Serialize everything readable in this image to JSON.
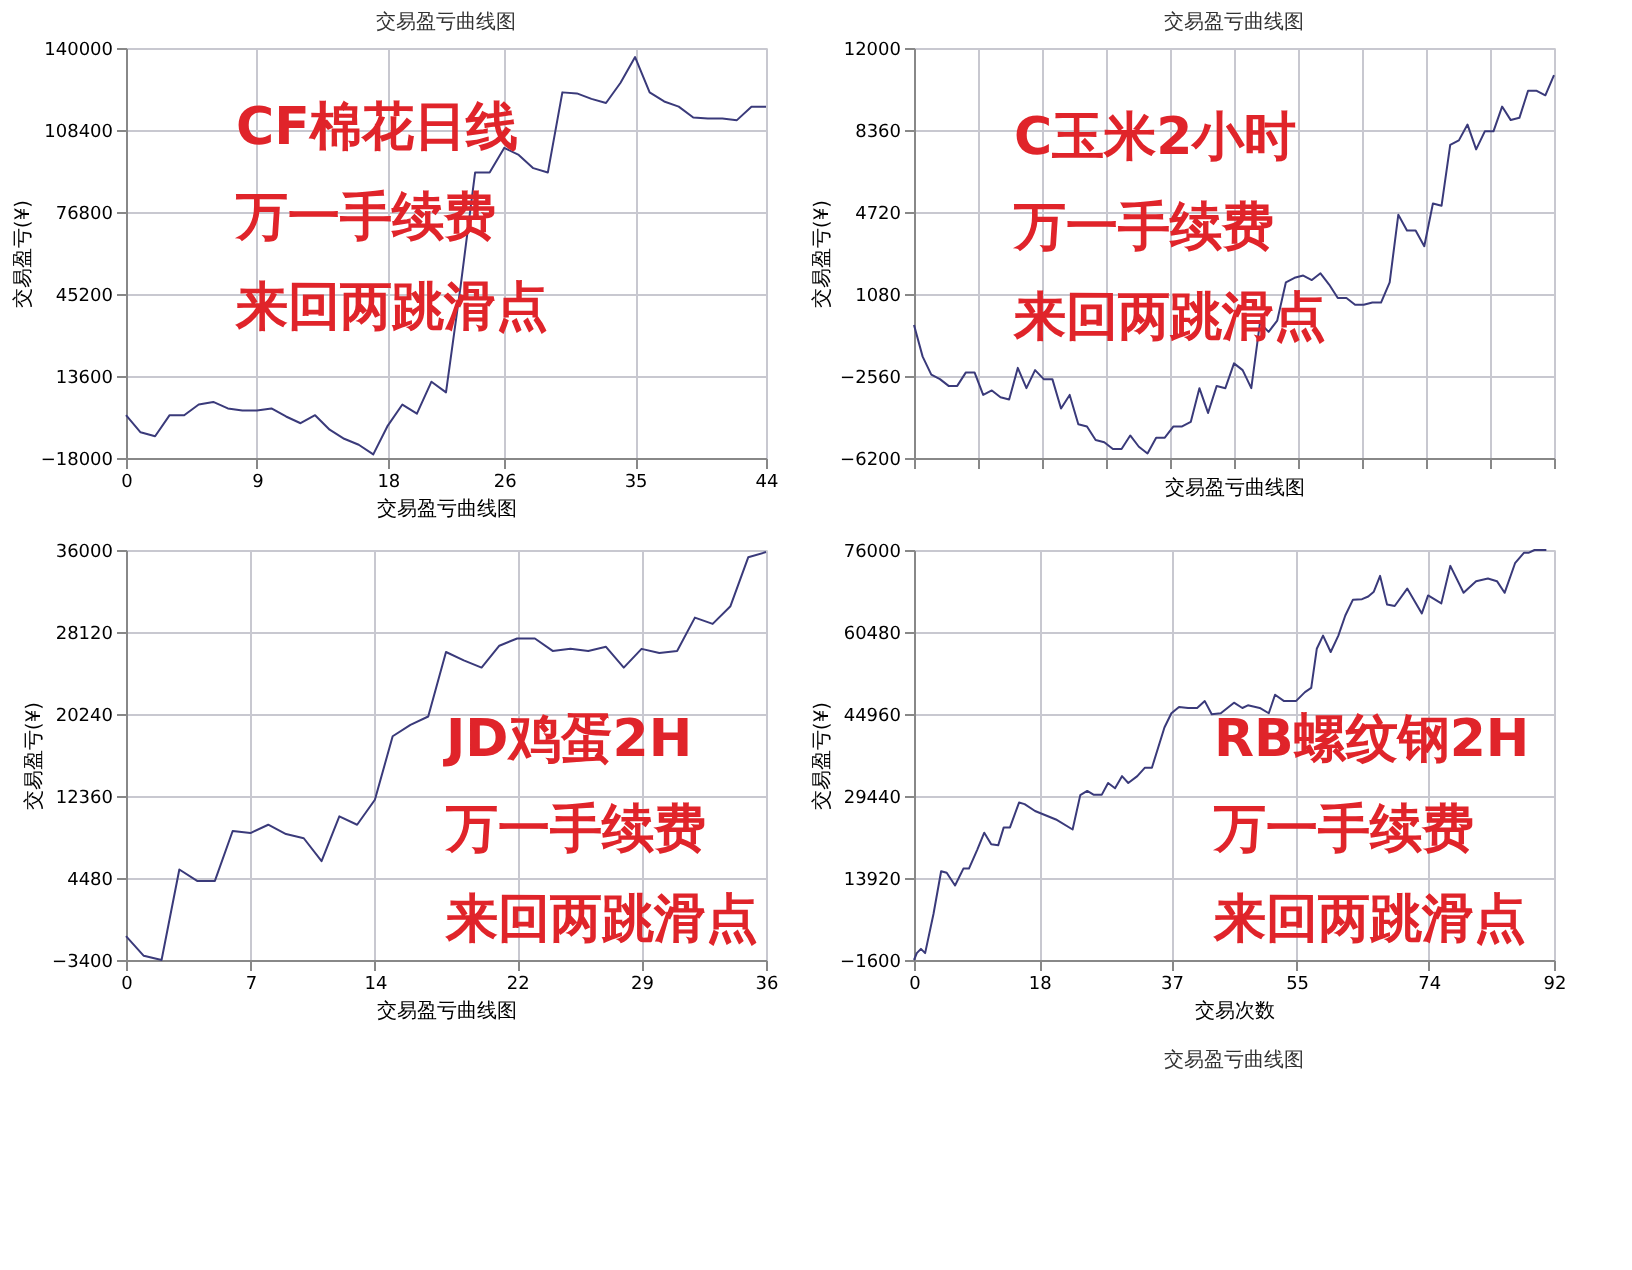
{
  "chart_data": [
    {
      "type": "line",
      "title": "交易盈亏曲线图",
      "xlabel": "交易盈亏曲线图",
      "ylabel": "交易盈亏(¥)",
      "x": [
        0,
        1,
        2,
        3,
        4,
        5,
        6,
        7,
        8,
        9,
        10,
        11,
        12,
        13,
        14,
        15,
        16,
        17,
        18,
        19,
        20,
        21,
        22,
        23,
        24,
        25,
        26,
        27,
        28,
        29,
        30,
        31,
        32,
        33,
        34,
        35,
        36,
        37,
        38,
        39,
        40,
        41,
        42,
        43,
        44
      ],
      "series": [
        {
          "color": "#3a3a7a",
          "values": [
            -1500,
            -8100,
            -9600,
            -1500,
            -1500,
            2600,
            3600,
            1100,
            300,
            300,
            1100,
            -2000,
            -4600,
            -1500,
            -7100,
            -10600,
            -12900,
            -16600,
            -5500,
            2600,
            -900,
            11400,
            7300,
            48000,
            92000,
            92000,
            101500,
            98800,
            93700,
            92000,
            122900,
            122500,
            120400,
            118800,
            126600,
            136500,
            122900,
            119400,
            117400,
            113200,
            112800,
            112800,
            112200,
            117400,
            117400
          ]
        }
      ],
      "xlim": [
        0,
        44
      ],
      "xticks": [
        0,
        9,
        18,
        26,
        35,
        44
      ],
      "ylim": [
        -18000,
        140000
      ],
      "yticks": [
        -18000,
        13600,
        45200,
        76800,
        108400,
        140000
      ],
      "grid": true,
      "line_style": "solid",
      "annotations": [
        "CF棉花日线",
        "万一手续费",
        "来回两跳滑点"
      ]
    },
    {
      "type": "line",
      "title": "交易盈亏曲线图",
      "xlabel": "交易盈亏曲线图",
      "ylabel": "交易盈亏(¥)",
      "categories": [
        null,
        null,
        null,
        null,
        null,
        null,
        null,
        null,
        null,
        null,
        null,
        null,
        null,
        null,
        null,
        null,
        null,
        null,
        null,
        null,
        null,
        null,
        null,
        null,
        null,
        null,
        null,
        null,
        null,
        null,
        null,
        null,
        null,
        null,
        null,
        null,
        null,
        null,
        null,
        null,
        null,
        null,
        null,
        null,
        null,
        null,
        null,
        null,
        null,
        null,
        null,
        null,
        null,
        null,
        null,
        null,
        null,
        null,
        null,
        null,
        null,
        null,
        null,
        null,
        null,
        null,
        null,
        null,
        null,
        null,
        null,
        null,
        null,
        null,
        null
      ],
      "series": [
        {
          "color": "#3a3a7a",
          "values": [
            -300,
            -1700,
            -2500,
            -2700,
            -3000,
            -3000,
            -2400,
            -2400,
            -3400,
            -3200,
            -3500,
            -3600,
            -2200,
            -3100,
            -2300,
            -2700,
            -2700,
            -4000,
            -3400,
            -4700,
            -4800,
            -5400,
            -5500,
            -5800,
            -5800,
            -5200,
            -5700,
            -6000,
            -5300,
            -5300,
            -4800,
            -4800,
            -4600,
            -3100,
            -4200,
            -3000,
            -3100,
            -2000,
            -2300,
            -3100,
            -200,
            -600,
            -100,
            1600,
            1800,
            1900,
            1700,
            2000,
            1500,
            900,
            900,
            600,
            600,
            700,
            700,
            1600,
            4600,
            3900,
            3900,
            3200,
            5100,
            5000,
            7700,
            7900,
            8600,
            7500,
            8300,
            8300,
            9400,
            8800,
            8900,
            10100,
            10100,
            9900,
            10800
          ]
        }
      ],
      "ylim": [
        -6200,
        12000
      ],
      "yticks": [
        -6200,
        -2560,
        1080,
        4720,
        8360,
        12000
      ],
      "grid": true,
      "line_style": "solid",
      "annotations": [
        "C玉米2小时",
        "万一手续费",
        "来回两跳滑点"
      ]
    },
    {
      "type": "line",
      "xlabel": "交易盈亏曲线图",
      "ylabel": "交易盈亏(¥)",
      "x": [
        0,
        1,
        2,
        3,
        4,
        5,
        6,
        7,
        8,
        9,
        10,
        11,
        12,
        13,
        14,
        15,
        16,
        17,
        18,
        19,
        20,
        21,
        22,
        23,
        24,
        25,
        26,
        27,
        28,
        29,
        30,
        31,
        32,
        33,
        34,
        35,
        36
      ],
      "series": [
        {
          "color": "#3a3a7a",
          "values": [
            -1100,
            -3000,
            -3400,
            5300,
            4200,
            4200,
            9000,
            8800,
            9600,
            8700,
            8300,
            6100,
            10400,
            9600,
            12000,
            18100,
            19200,
            20000,
            26200,
            25400,
            24700,
            26800,
            27500,
            27500,
            26300,
            26500,
            26300,
            26700,
            24700,
            26500,
            26100,
            26300,
            29500,
            28900,
            30600,
            35300,
            35800
          ]
        }
      ],
      "xlim": [
        0,
        36
      ],
      "xticks": [
        0,
        7,
        14,
        22,
        29,
        36
      ],
      "ylim": [
        -3400,
        36000
      ],
      "yticks": [
        -3400,
        4480,
        12360,
        20240,
        28120,
        36000
      ],
      "grid": true,
      "line_style": "solid",
      "annotations": [
        "JD鸡蛋2H",
        "万一手续费",
        "来回两跳滑点"
      ]
    },
    {
      "type": "line",
      "xlabel": "交易次数",
      "ylabel": "交易盈亏(¥)",
      "x": [
        0,
        0.4,
        1.0,
        1.6,
        2.8,
        3.9,
        4.7,
        5.9,
        7.1,
        7.9,
        9.1,
        10.1,
        11.1,
        12.1,
        12.9,
        13.8,
        15.1,
        15.9,
        17.4,
        20.4,
        22.8,
        23.9,
        24.9,
        25.8,
        27.0,
        27.9,
        28.9,
        29.9,
        30.8,
        32.1,
        33.2,
        34.2,
        36.0,
        37.0,
        38.1,
        39.4,
        40.7,
        41.8,
        42.8,
        44.1,
        46.0,
        47.2,
        48.0,
        49.7,
        51.0,
        51.9,
        53.2,
        54.9,
        56.2,
        57.1,
        57.9,
        58.8,
        59.9,
        61.0,
        62.0,
        63.1,
        64.4,
        65.3,
        66.1,
        67.0,
        68.0,
        69.1,
        70.9,
        73.0,
        73.9,
        75.8,
        77.1,
        79.0,
        80.8,
        82.5,
        83.8,
        84.9,
        86.4,
        87.7,
        88.4,
        89.2,
        90.9
      ],
      "series": [
        {
          "color": "#3a3a7a",
          "values": [
            -1600,
            -300,
            500,
            -300,
            7100,
            15200,
            14900,
            12500,
            15700,
            15700,
            19300,
            22500,
            20300,
            20100,
            23500,
            23500,
            28200,
            27900,
            26600,
            25000,
            23100,
            29600,
            30400,
            29700,
            29700,
            31900,
            30900,
            33200,
            31900,
            33200,
            34800,
            34800,
            42400,
            45100,
            46300,
            46100,
            46100,
            47400,
            44900,
            45100,
            47100,
            46100,
            46600,
            46100,
            45100,
            48600,
            47400,
            47400,
            49100,
            49900,
            57300,
            59800,
            56700,
            59800,
            63600,
            66600,
            66700,
            67200,
            68100,
            71100,
            65700,
            65400,
            68700,
            64000,
            67400,
            65900,
            73000,
            67900,
            70100,
            70600,
            70100,
            67900,
            73500,
            75500,
            75500,
            76000,
            76000
          ]
        }
      ],
      "xlim": [
        0,
        92
      ],
      "xticks": [
        0,
        18,
        37,
        55,
        74,
        92
      ],
      "ylim": [
        -1600,
        76000
      ],
      "yticks": [
        -1600,
        13920,
        29440,
        44960,
        60480,
        76000
      ],
      "grid": true,
      "line_style": "solid",
      "annotations": [
        "RB螺纹钢2H",
        "万一手续费",
        "来回两跳滑点",
        "交易盈亏曲线图"
      ]
    }
  ]
}
